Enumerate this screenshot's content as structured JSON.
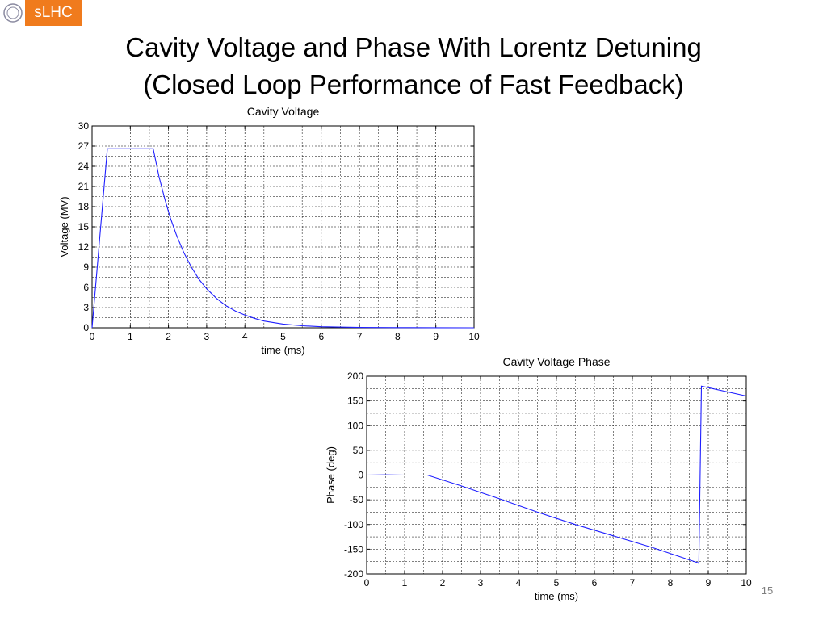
{
  "logo": {
    "org_icon": "cern-logo-icon",
    "text": "sLHC",
    "color": "#f07b1d"
  },
  "slide": {
    "title_line1": "Cavity Voltage and Phase With Lorentz Detuning",
    "title_line2": "(Closed Loop Performance of Fast Feedback)",
    "page_number": "15"
  },
  "chart_data": [
    {
      "type": "line",
      "title": "Cavity Voltage",
      "xlabel": "time (ms)",
      "ylabel": "Voltage (MV)",
      "xlim": [
        0,
        10
      ],
      "ylim": [
        0,
        30
      ],
      "xticks": [
        0,
        1,
        2,
        3,
        4,
        5,
        6,
        7,
        8,
        9,
        10
      ],
      "yticks": [
        0,
        3,
        6,
        9,
        12,
        15,
        18,
        21,
        24,
        27,
        30
      ],
      "grid": true,
      "line_color": "#1f1fff",
      "series": [
        {
          "x": [
            0,
            0.4,
            1.6,
            1.75,
            1.9,
            2.05,
            2.2,
            2.4,
            2.6,
            2.8,
            3.0,
            3.25,
            3.5,
            3.75,
            4.0,
            4.25,
            4.5,
            5.0,
            5.5,
            6.0,
            7.0,
            8.0,
            9.0,
            10.0
          ],
          "y": [
            0,
            26.6,
            26.6,
            22.5,
            19.2,
            16.3,
            13.9,
            11.2,
            9.0,
            7.2,
            5.8,
            4.4,
            3.3,
            2.5,
            1.9,
            1.4,
            1.0,
            0.55,
            0.3,
            0.16,
            0.05,
            0.02,
            0.01,
            0.0
          ]
        }
      ]
    },
    {
      "type": "line",
      "title": "Cavity Voltage Phase",
      "xlabel": "time (ms)",
      "ylabel": "Phase (deg)",
      "xlim": [
        0,
        10
      ],
      "ylim": [
        -200,
        200
      ],
      "xticks": [
        0,
        1,
        2,
        3,
        4,
        5,
        6,
        7,
        8,
        9,
        10
      ],
      "yticks": [
        -200,
        -150,
        -100,
        -50,
        0,
        50,
        100,
        150,
        200
      ],
      "grid": true,
      "line_color": "#1f1fff",
      "series": [
        {
          "x": [
            0,
            0.5,
            1.0,
            1.6,
            2.5,
            3.5,
            4.5,
            5.5,
            6.5,
            7.5,
            8.75,
            8.75,
            8.82,
            10.0
          ],
          "y": [
            0,
            0.5,
            0,
            0,
            -22,
            -48,
            -75,
            -100,
            -123,
            -146,
            -178,
            -180,
            180,
            160
          ]
        }
      ]
    }
  ]
}
